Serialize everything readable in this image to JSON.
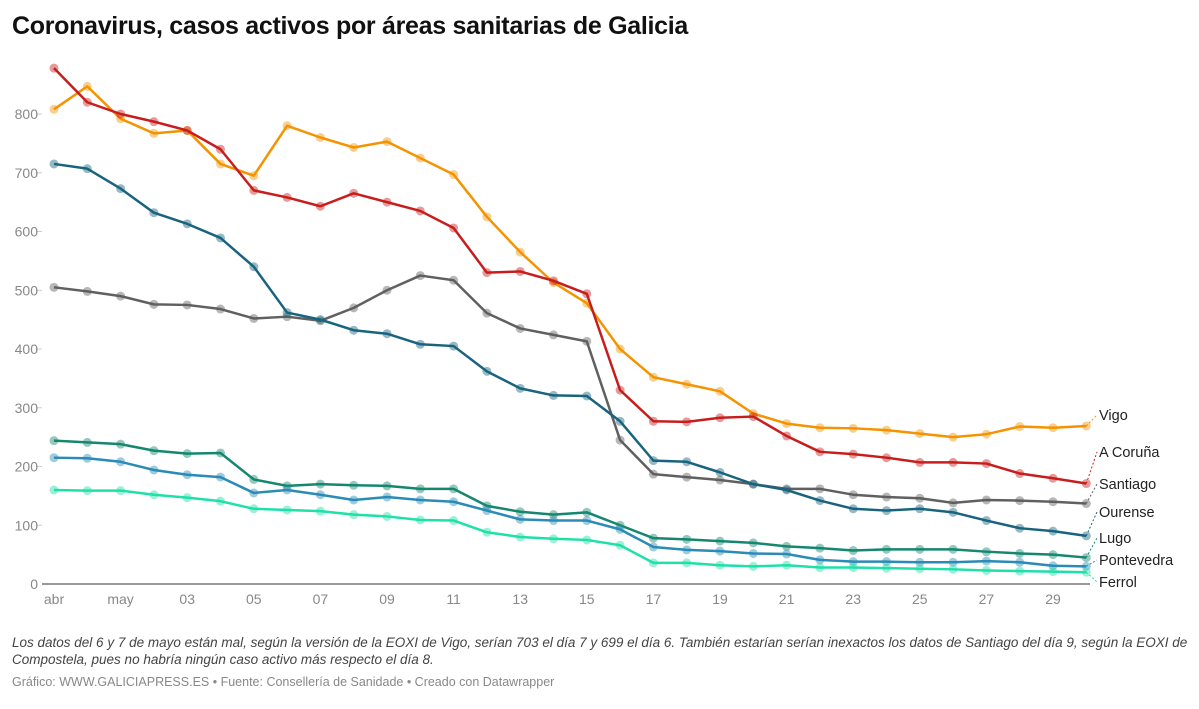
{
  "title": "Coronavirus, casos activos por áreas sanitarias de Galicia",
  "note": "Los datos del 6 y 7 de mayo están mal, según la versión de la EOXI de Vigo, serían 703 el día 7 y 699 el día 6. También estarían serían inexactos los datos de Santiago del día 9, según la EOXI de Compostela, pues no habría ningún caso activo más respecto el día 8.",
  "credit": "Gráfico: WWW.GALICIAPRESS.ES • Fuente: Consellería de Sanidade • Creado con Datawrapper",
  "chart_data": {
    "type": "line",
    "title": "Coronavirus, casos activos por áreas sanitarias de Galicia",
    "x": [
      "29 abr",
      "30 abr",
      "1 may",
      "2 may",
      "3 may",
      "4 may",
      "5 may",
      "6 may",
      "7 may",
      "8 may",
      "9 may",
      "10 may",
      "11 may",
      "12 may",
      "13 may",
      "14 may",
      "15 may",
      "16 may",
      "17 may",
      "18 may",
      "19 may",
      "20 may",
      "21 may",
      "22 may",
      "23 may",
      "24 may",
      "25 may",
      "26 may",
      "27 may",
      "28 may",
      "29 may",
      "30 may"
    ],
    "x_tick_labels": [
      "abr",
      "may",
      "03",
      "05",
      "07",
      "09",
      "11",
      "13",
      "15",
      "17",
      "19",
      "21",
      "23",
      "25",
      "27",
      "29"
    ],
    "y_ticks": [
      0,
      100,
      200,
      300,
      400,
      500,
      600,
      700,
      800
    ],
    "ylim": [
      0,
      900
    ],
    "grid": false,
    "legend": "direct labels at right end of lines",
    "series": [
      {
        "name": "Vigo",
        "color": "#f59300",
        "values": [
          808,
          847,
          792,
          767,
          772,
          715,
          695,
          780,
          760,
          743,
          753,
          725,
          697,
          625,
          565,
          513,
          478,
          400,
          352,
          340,
          328,
          290,
          273,
          266,
          265,
          262,
          256,
          250,
          255,
          268,
          266,
          269
        ]
      },
      {
        "name": "A Coruña",
        "color": "#c71e1d",
        "values": [
          878,
          820,
          800,
          787,
          772,
          740,
          670,
          658,
          643,
          665,
          650,
          635,
          606,
          530,
          532,
          516,
          494,
          330,
          277,
          276,
          283,
          285,
          252,
          225,
          221,
          215,
          207,
          207,
          205,
          188,
          180,
          171
        ]
      },
      {
        "name": "Santiago",
        "color": "#606060",
        "values": [
          505,
          498,
          490,
          476,
          475,
          468,
          452,
          455,
          448,
          470,
          500,
          525,
          517,
          461,
          435,
          424,
          413,
          245,
          187,
          182,
          177,
          170,
          162,
          162,
          152,
          148,
          146,
          138,
          143,
          142,
          140,
          137
        ]
      },
      {
        "name": "Ourense",
        "color": "#18647e",
        "values": [
          715,
          707,
          673,
          632,
          613,
          589,
          540,
          462,
          450,
          432,
          426,
          408,
          405,
          362,
          333,
          321,
          320,
          277,
          210,
          208,
          190,
          170,
          160,
          142,
          128,
          125,
          128,
          122,
          108,
          95,
          90,
          82
        ]
      },
      {
        "name": "Lugo",
        "color": "#15876f",
        "values": [
          244,
          241,
          238,
          227,
          222,
          223,
          178,
          167,
          170,
          168,
          167,
          162,
          162,
          133,
          123,
          118,
          122,
          100,
          78,
          76,
          73,
          70,
          64,
          61,
          57,
          59,
          59,
          59,
          55,
          52,
          50,
          45
        ]
      },
      {
        "name": "Pontevedra",
        "color": "#2a8bb8",
        "values": [
          215,
          214,
          208,
          194,
          186,
          182,
          155,
          160,
          152,
          143,
          148,
          143,
          140,
          125,
          110,
          108,
          108,
          93,
          63,
          58,
          56,
          52,
          51,
          41,
          38,
          38,
          37,
          37,
          39,
          37,
          31,
          30
        ]
      },
      {
        "name": "Ferrol",
        "color": "#1ee0a8",
        "values": [
          160,
          159,
          159,
          152,
          147,
          141,
          128,
          126,
          124,
          118,
          115,
          109,
          108,
          88,
          80,
          77,
          75,
          66,
          36,
          36,
          32,
          30,
          32,
          28,
          28,
          27,
          26,
          25,
          23,
          22,
          21,
          20
        ]
      }
    ]
  }
}
